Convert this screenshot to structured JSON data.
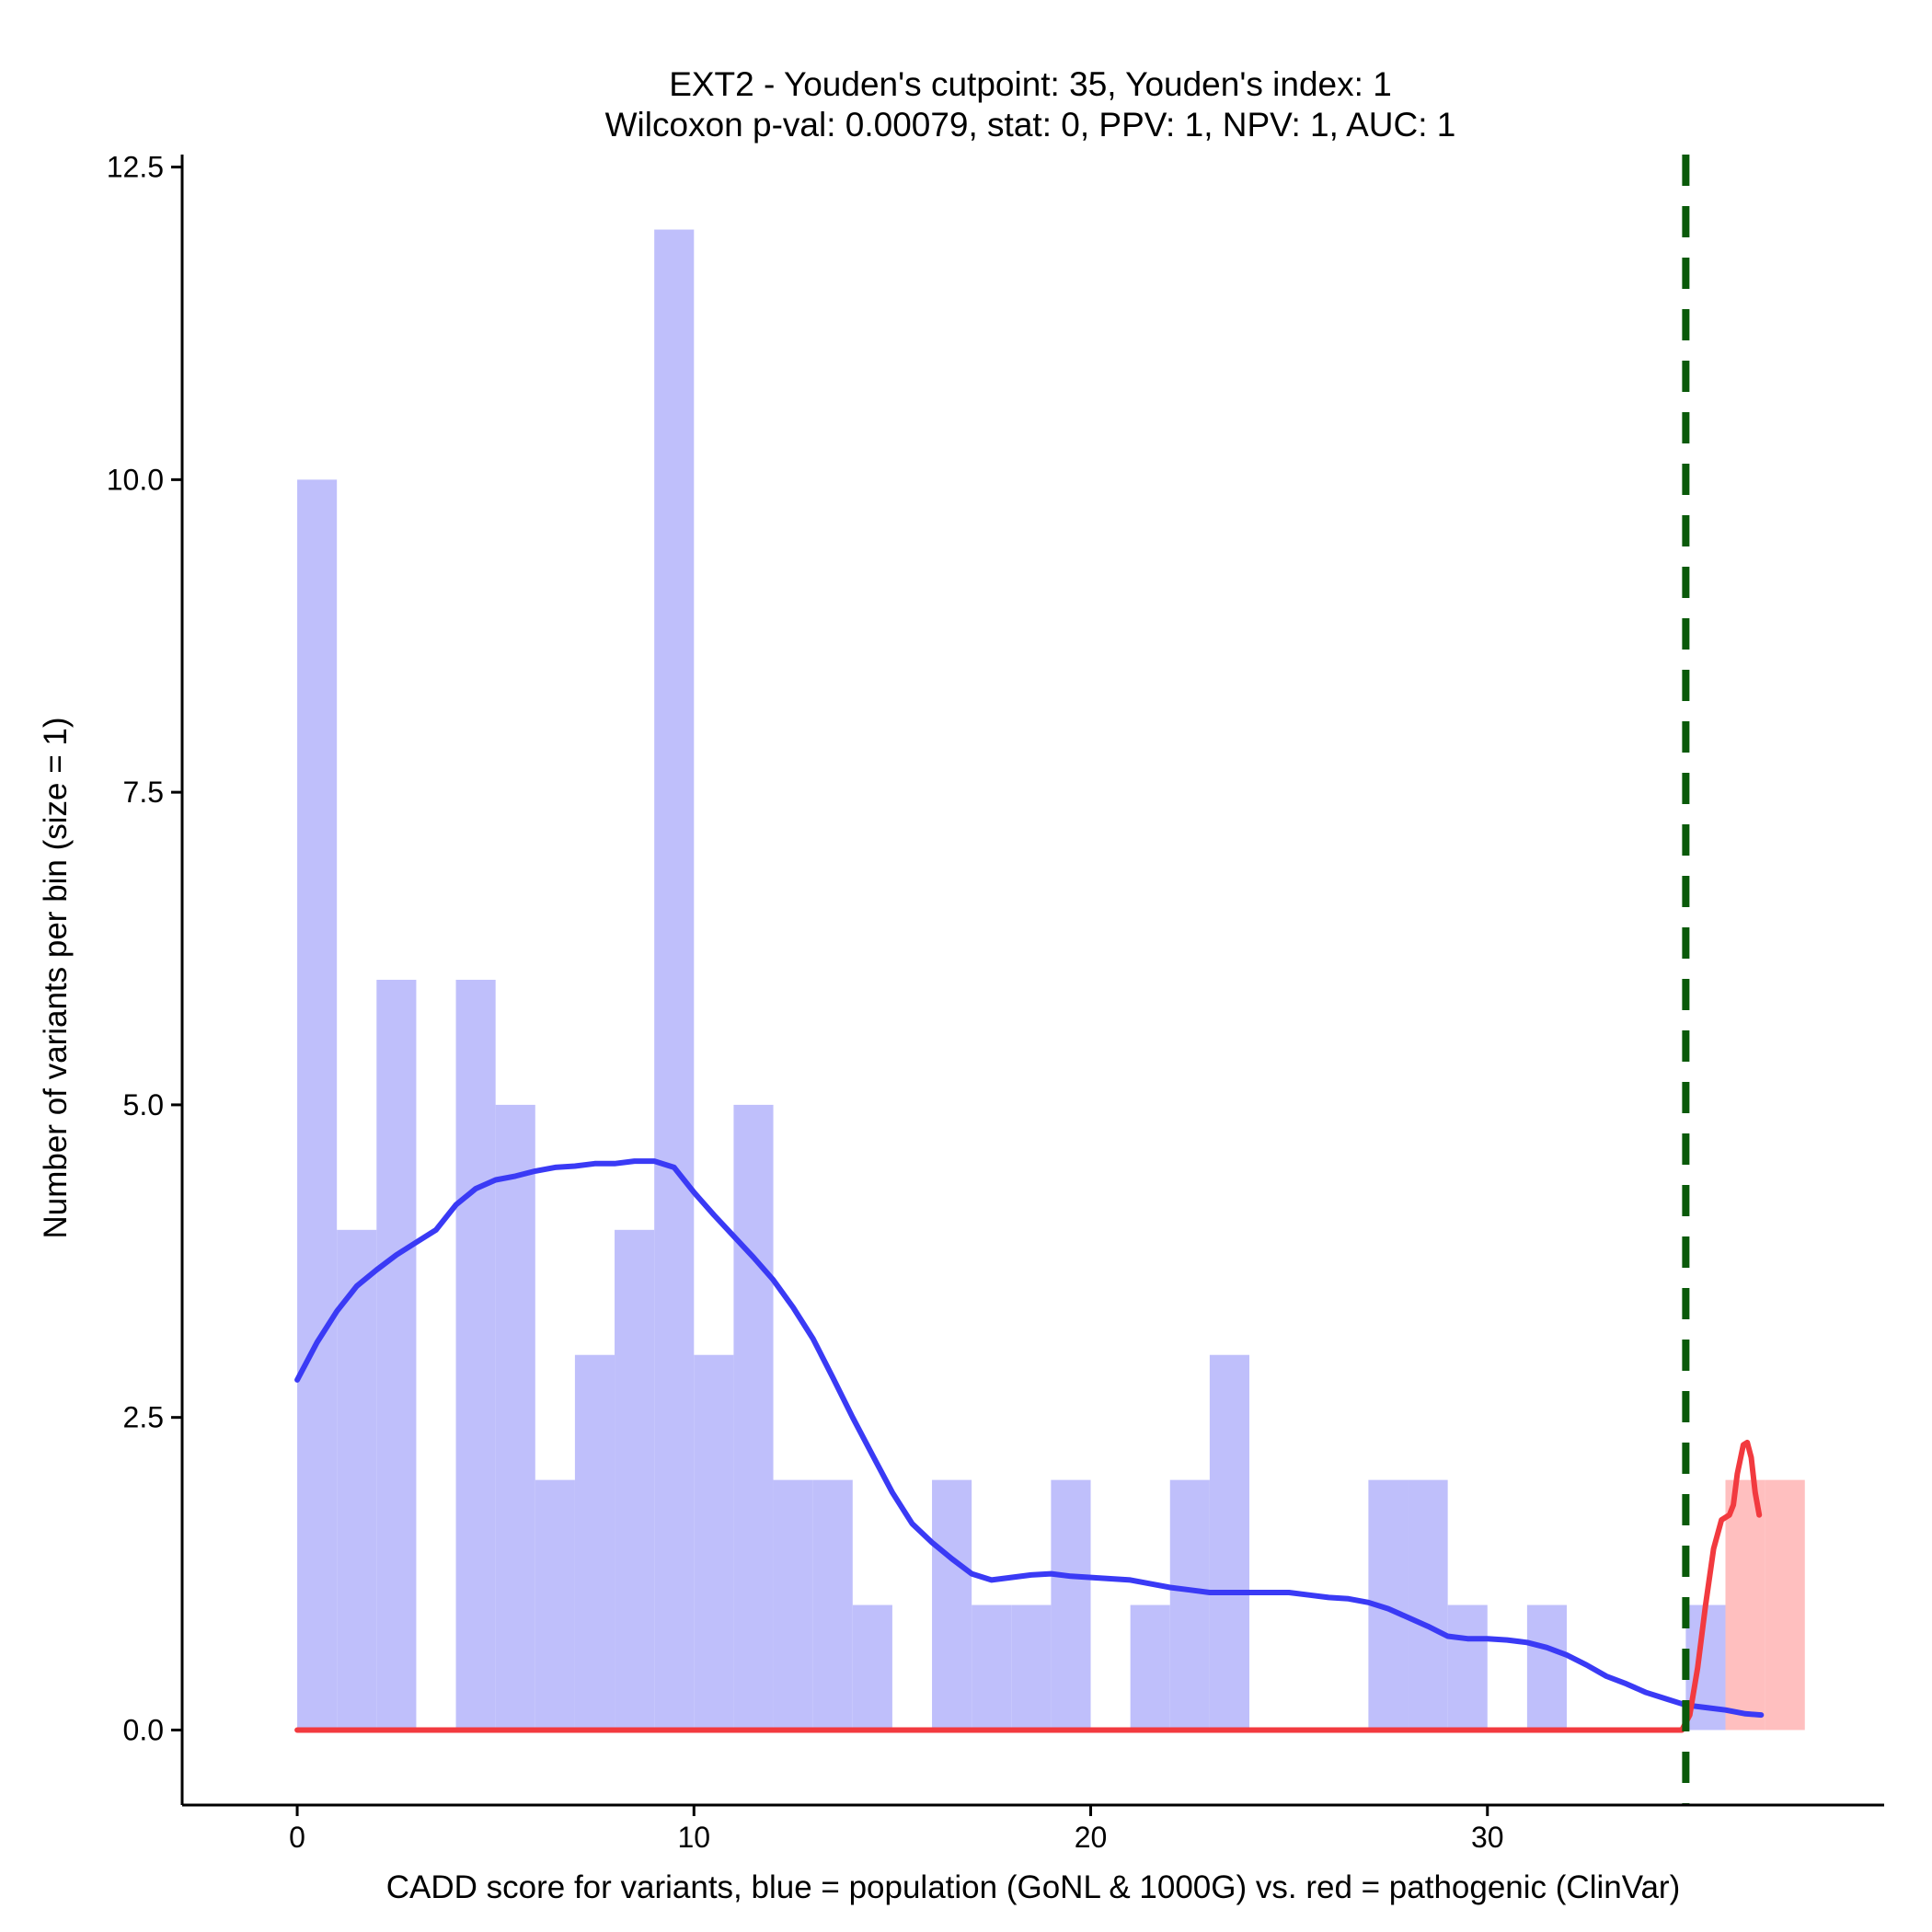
{
  "chart_data": {
    "type": "bar",
    "title_line1": "EXT2 - Youden's cutpoint: 35, Youden's index: 1",
    "title_line2": "Wilcoxon p-val: 0.00079, stat: 0, PPV: 1, NPV: 1, AUC: 1",
    "xlabel": "CADD score for variants, blue = population (GoNL & 1000G) vs. red = pathogenic (ClinVar)",
    "ylabel": "Number of variants per bin (size = 1)",
    "xlim": [
      -2.9,
      40
    ],
    "ylim": [
      -0.6,
      12.6
    ],
    "x_ticks": [
      0,
      10,
      20,
      30
    ],
    "x_tick_labels": [
      "0",
      "10",
      "20",
      "30"
    ],
    "y_ticks": [
      0,
      2.5,
      5,
      7.5,
      10,
      12.5
    ],
    "y_tick_labels": [
      "0.0",
      "2.5",
      "5.0",
      "7.5",
      "10.0",
      "12.5"
    ],
    "bin_width": 1,
    "cutpoint": 35,
    "series": [
      {
        "name": "population (GoNL & 1000G)",
        "color": "#bfbffb",
        "bins": [
          [
            0,
            10
          ],
          [
            1,
            4
          ],
          [
            2,
            6
          ],
          [
            4,
            6
          ],
          [
            5,
            5
          ],
          [
            6,
            2
          ],
          [
            7,
            3
          ],
          [
            8,
            4
          ],
          [
            9,
            12
          ],
          [
            10,
            3
          ],
          [
            11,
            5
          ],
          [
            12,
            2
          ],
          [
            13,
            2
          ],
          [
            14,
            1
          ],
          [
            16,
            2
          ],
          [
            17,
            1
          ],
          [
            18,
            1
          ],
          [
            19,
            2
          ],
          [
            21,
            1
          ],
          [
            22,
            2
          ],
          [
            23,
            3
          ],
          [
            27,
            2
          ],
          [
            28,
            2
          ],
          [
            29,
            1
          ],
          [
            31,
            1
          ],
          [
            35,
            1
          ]
        ]
      },
      {
        "name": "pathogenic (ClinVar)",
        "color": "#ffbfbf",
        "bins": [
          [
            36,
            2
          ],
          [
            37,
            2
          ]
        ]
      }
    ],
    "density_lines": [
      {
        "name": "population density",
        "color": "#3a3af5",
        "points": [
          [
            0,
            2.8
          ],
          [
            0.5,
            3.1
          ],
          [
            1,
            3.35
          ],
          [
            1.5,
            3.55
          ],
          [
            2,
            3.68
          ],
          [
            2.5,
            3.8
          ],
          [
            3,
            3.9
          ],
          [
            3.5,
            4.0
          ],
          [
            4,
            4.2
          ],
          [
            4.5,
            4.33
          ],
          [
            5,
            4.4
          ],
          [
            5.5,
            4.43
          ],
          [
            6,
            4.47
          ],
          [
            6.5,
            4.5
          ],
          [
            7,
            4.51
          ],
          [
            7.5,
            4.53
          ],
          [
            8,
            4.53
          ],
          [
            8.5,
            4.55
          ],
          [
            9,
            4.55
          ],
          [
            9.5,
            4.5
          ],
          [
            10,
            4.3
          ],
          [
            10.5,
            4.12
          ],
          [
            11,
            3.95
          ],
          [
            11.5,
            3.78
          ],
          [
            12,
            3.6
          ],
          [
            12.5,
            3.38
          ],
          [
            13,
            3.13
          ],
          [
            13.5,
            2.82
          ],
          [
            14,
            2.5
          ],
          [
            14.5,
            2.2
          ],
          [
            15,
            1.9
          ],
          [
            15.5,
            1.65
          ],
          [
            16,
            1.5
          ],
          [
            16.5,
            1.37
          ],
          [
            17,
            1.25
          ],
          [
            17.5,
            1.2
          ],
          [
            18,
            1.22
          ],
          [
            18.5,
            1.24
          ],
          [
            19,
            1.25
          ],
          [
            19.5,
            1.23
          ],
          [
            20,
            1.22
          ],
          [
            20.5,
            1.21
          ],
          [
            21,
            1.2
          ],
          [
            21.5,
            1.17
          ],
          [
            22,
            1.14
          ],
          [
            22.5,
            1.12
          ],
          [
            23,
            1.1
          ],
          [
            23.5,
            1.1
          ],
          [
            24,
            1.1
          ],
          [
            24.5,
            1.1
          ],
          [
            25,
            1.1
          ],
          [
            25.5,
            1.08
          ],
          [
            26,
            1.06
          ],
          [
            26.5,
            1.05
          ],
          [
            27,
            1.02
          ],
          [
            27.5,
            0.97
          ],
          [
            28,
            0.9
          ],
          [
            28.5,
            0.83
          ],
          [
            29,
            0.75
          ],
          [
            29.5,
            0.73
          ],
          [
            30,
            0.73
          ],
          [
            30.5,
            0.72
          ],
          [
            31,
            0.7
          ],
          [
            31.5,
            0.66
          ],
          [
            32,
            0.6
          ],
          [
            32.5,
            0.52
          ],
          [
            33,
            0.43
          ],
          [
            33.5,
            0.37
          ],
          [
            34,
            0.3
          ],
          [
            34.5,
            0.25
          ],
          [
            35,
            0.2
          ],
          [
            35.5,
            0.18
          ],
          [
            36,
            0.16
          ],
          [
            36.5,
            0.13
          ],
          [
            36.9,
            0.12
          ]
        ]
      },
      {
        "name": "pathogenic density",
        "color": "#f23a3f",
        "points": [
          [
            0,
            0
          ],
          [
            5,
            0
          ],
          [
            10,
            0
          ],
          [
            15,
            0
          ],
          [
            20,
            0
          ],
          [
            25,
            0
          ],
          [
            30,
            0
          ],
          [
            34.9,
            0
          ],
          [
            35.1,
            0.12
          ],
          [
            35.3,
            0.5
          ],
          [
            35.5,
            1.0
          ],
          [
            35.7,
            1.45
          ],
          [
            35.9,
            1.68
          ],
          [
            36.1,
            1.72
          ],
          [
            36.2,
            1.8
          ],
          [
            36.3,
            2.05
          ],
          [
            36.45,
            2.28
          ],
          [
            36.55,
            2.3
          ],
          [
            36.65,
            2.18
          ],
          [
            36.75,
            1.9
          ],
          [
            36.85,
            1.72
          ]
        ]
      }
    ]
  }
}
